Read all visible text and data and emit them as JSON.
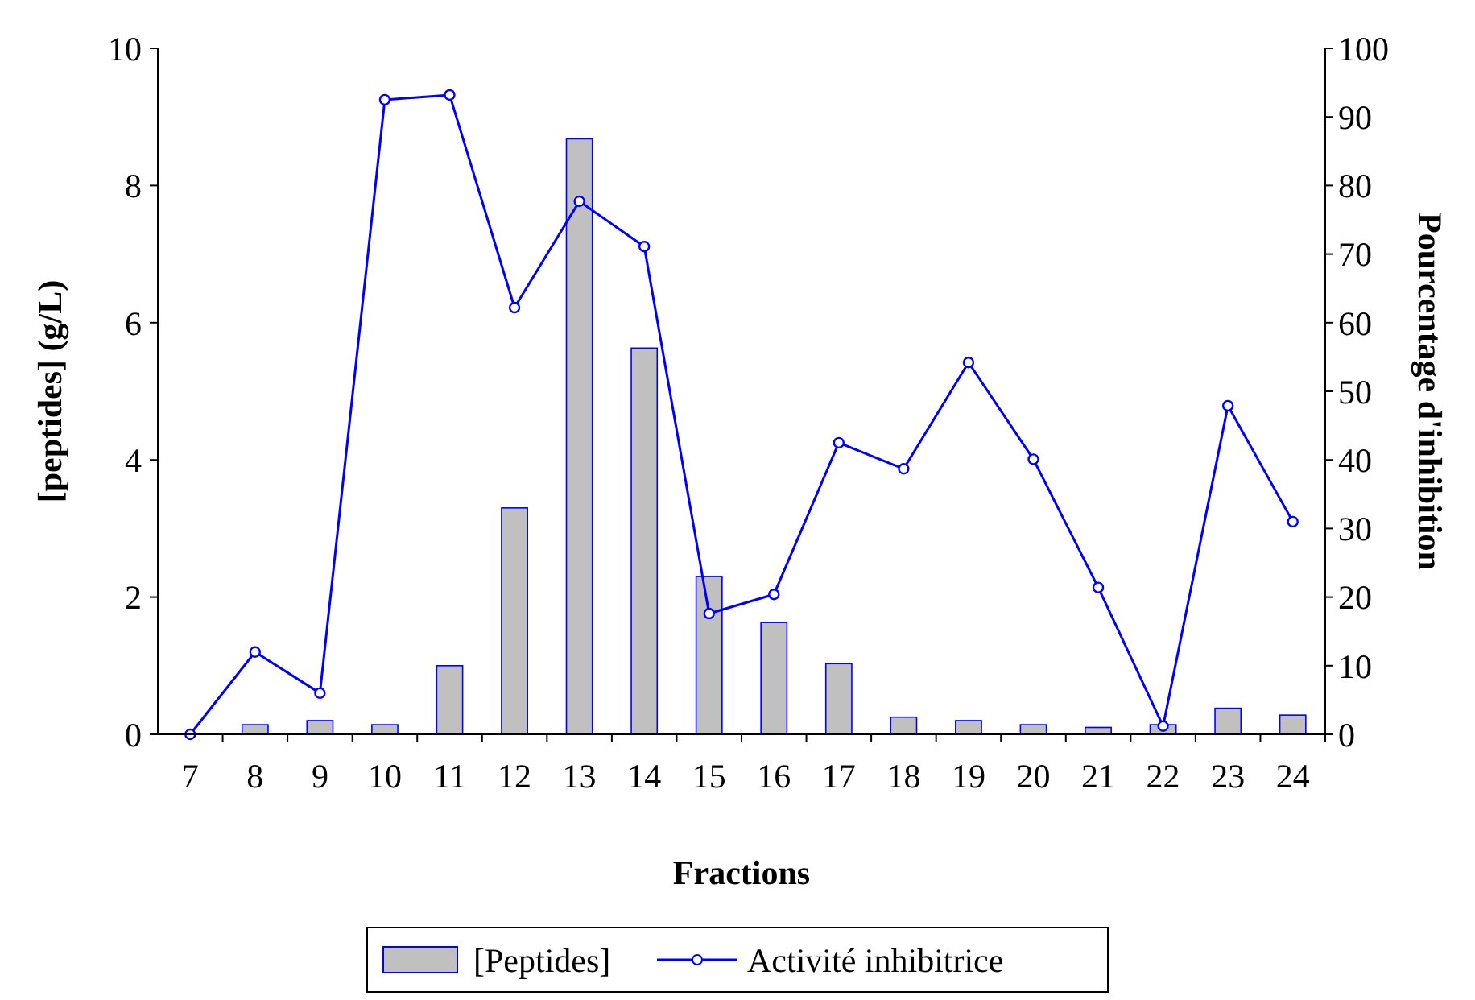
{
  "chart_data": {
    "type": "bar",
    "xlabel": "Fractions",
    "ylabel": "[peptides] (g/L)",
    "y2label": "Pourcentage d'inhibition",
    "categories": [
      "7",
      "8",
      "9",
      "10",
      "11",
      "12",
      "13",
      "14",
      "15",
      "16",
      "17",
      "18",
      "19",
      "20",
      "21",
      "22",
      "23",
      "24"
    ],
    "series": [
      {
        "name": "[Peptides]",
        "color": "#c0c0c0",
        "values": [
          0,
          0.14,
          0.2,
          0.14,
          1.0,
          3.3,
          8.68,
          5.63,
          2.3,
          1.63,
          1.03,
          0.25,
          0.2,
          0.14,
          0.1,
          0.14,
          0.38,
          0.28
        ]
      },
      {
        "name": "Activité inhibitrice",
        "type": "line",
        "axis": "y2",
        "color": "#0000ff",
        "marker": "circle",
        "values": [
          0,
          12,
          6,
          92.5,
          93.2,
          62.2,
          77.7,
          71.1,
          17.6,
          20.4,
          42.5,
          38.7,
          54.2,
          40.1,
          21.4,
          1.2,
          47.9,
          31
        ]
      }
    ],
    "ylim": [
      0,
      10
    ],
    "yticks": [
      0,
      2,
      4,
      6,
      8,
      10
    ],
    "y2lim": [
      0,
      100
    ],
    "y2ticks": [
      0,
      10,
      20,
      30,
      40,
      50,
      60,
      70,
      80,
      90,
      100
    ],
    "grid": false,
    "legend": "bottom"
  }
}
